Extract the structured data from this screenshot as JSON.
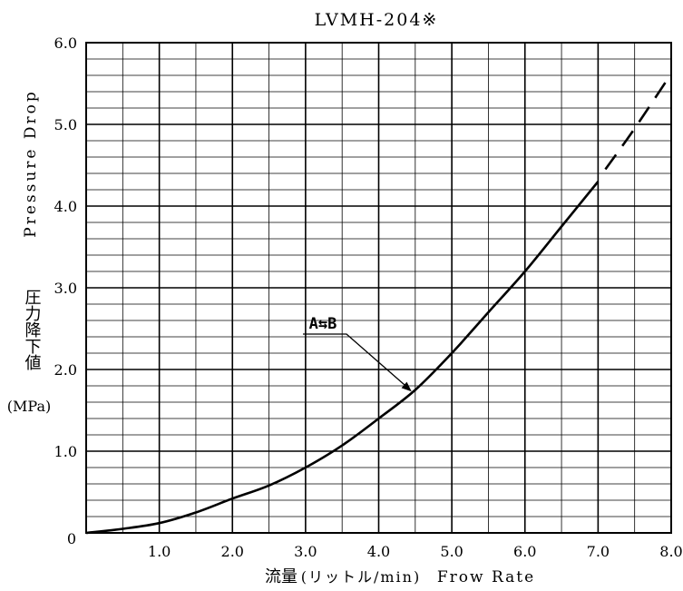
{
  "chart_data": {
    "type": "line",
    "title": "LVMH-204※",
    "xlabel": {
      "jp": "流量",
      "unit": "(リットル/min)",
      "en": "Frow Rate"
    },
    "ylabel": {
      "en": "Pressure Drop",
      "jp": "圧力降下値",
      "unit": "(MPa)"
    },
    "xlim": [
      0,
      8.0
    ],
    "ylim": [
      0,
      6.0
    ],
    "x_ticks": [
      "0",
      "1.0",
      "2.0",
      "3.0",
      "4.0",
      "5.0",
      "6.0",
      "7.0",
      "8.0"
    ],
    "y_ticks": [
      "0",
      "1.0",
      "2.0",
      "3.0",
      "4.0",
      "5.0",
      "6.0"
    ],
    "grid": true,
    "series": [
      {
        "style": "solid",
        "x": [
          0,
          0.5,
          1.0,
          1.5,
          2.0,
          2.5,
          3.0,
          3.5,
          4.0,
          4.5,
          5.0,
          5.5,
          6.0,
          6.5,
          7.0
        ],
        "y": [
          0,
          0.05,
          0.12,
          0.25,
          0.42,
          0.58,
          0.8,
          1.07,
          1.4,
          1.75,
          2.2,
          2.7,
          3.2,
          3.75,
          4.3
        ]
      },
      {
        "style": "dashed",
        "x": [
          7.1,
          7.5,
          8.0
        ],
        "y": [
          4.45,
          4.95,
          5.62
        ]
      }
    ],
    "annotation": {
      "label": "A⇆B",
      "x": 4.45,
      "y": 1.73
    }
  }
}
